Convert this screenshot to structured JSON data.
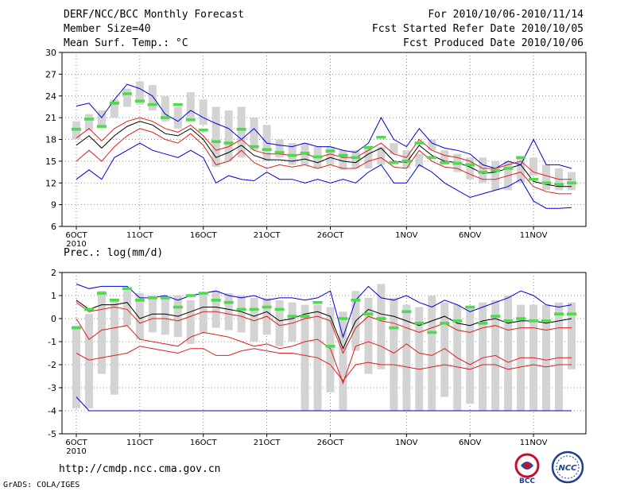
{
  "header": {
    "title": "DERF/NCC/BCC Monthly Forecast",
    "member_size": "Member Size=40",
    "variable": "Mean Surf. Temp.: °C",
    "forecast_period": "For 2010/10/06-2010/11/14",
    "refer_date": "Fcst Started Refer Date 2010/10/05",
    "produced_date": "Fcst Produced Date 2010/10/06"
  },
  "footer": {
    "url": "http://cmdp.ncc.cma.gov.cn",
    "credit": "GrADS: COLA/IGES",
    "logo_left": "BCC",
    "logo_right": "NCC"
  },
  "colors": {
    "box": "#d3d3d3",
    "median": "#4ddb4d",
    "mean": "#000000",
    "clim": "#e01e1e",
    "envelope": "#0000d8",
    "grid": "#666666"
  },
  "chart_data": [
    {
      "type": "box-ensemble",
      "title": "Mean Surf. Temp.: °C",
      "ylim": [
        6,
        30
      ],
      "yticks": [
        6,
        9,
        12,
        15,
        18,
        21,
        24,
        27,
        30
      ],
      "xlabels": [
        {
          "day": 1,
          "text": "6OCT"
        },
        {
          "day": 6,
          "text": "11OCT"
        },
        {
          "day": 11,
          "text": "16OCT"
        },
        {
          "day": 16,
          "text": "21OCT"
        },
        {
          "day": 21,
          "text": "26OCT"
        },
        {
          "day": 27,
          "text": "1NOV"
        },
        {
          "day": 32,
          "text": "6NOV"
        },
        {
          "day": 37,
          "text": "11NOV"
        }
      ],
      "year_label": "2010",
      "days": [
        1,
        2,
        3,
        4,
        5,
        6,
        7,
        8,
        9,
        10,
        11,
        12,
        13,
        14,
        15,
        16,
        17,
        18,
        19,
        20,
        21,
        22,
        23,
        24,
        25,
        26,
        27,
        28,
        29,
        30,
        31,
        32,
        33,
        34,
        35,
        36,
        37,
        38,
        39,
        40
      ],
      "box_low": [
        18.0,
        19.2,
        20.0,
        21.0,
        22.5,
        22.8,
        22.0,
        20.5,
        19.5,
        20.8,
        20.0,
        14.2,
        15.0,
        15.5,
        16.5,
        15.0,
        15.5,
        14.5,
        14.5,
        14.0,
        14.5,
        13.8,
        14.0,
        14.0,
        14.5,
        16.0,
        14.0,
        14.2,
        16.5,
        14.5,
        13.5,
        12.5,
        12.0,
        11.0,
        11.0,
        12.0,
        13.0,
        11.0,
        11.0,
        11.0
      ],
      "box_high": [
        20.5,
        21.5,
        22.0,
        23.5,
        25.0,
        26.0,
        25.5,
        24.0,
        22.5,
        24.5,
        23.5,
        22.5,
        22.0,
        22.5,
        21.0,
        20.0,
        18.0,
        17.5,
        17.5,
        17.0,
        17.0,
        16.5,
        16.5,
        17.0,
        17.0,
        17.5,
        16.5,
        16.0,
        18.0,
        16.5,
        16.0,
        15.5,
        15.5,
        15.0,
        15.0,
        15.5,
        15.5,
        14.5,
        14.0,
        13.5
      ],
      "median": [
        19.4,
        20.8,
        19.8,
        23.0,
        24.3,
        23.3,
        22.8,
        21.0,
        22.8,
        20.7,
        19.3,
        17.7,
        17.5,
        19.4,
        17.0,
        16.6,
        16.2,
        15.8,
        16.1,
        15.6,
        16.4,
        15.8,
        15.5,
        16.9,
        18.3,
        14.8,
        15.0,
        17.5,
        15.5,
        14.8,
        14.7,
        14.5,
        13.5,
        13.7,
        14.0,
        15.5,
        12.5,
        12.0,
        11.8,
        12.0
      ],
      "series": [
        {
          "name": "max",
          "color": "#0000d8",
          "values": [
            22.6,
            23.0,
            21.0,
            23.5,
            25.6,
            25.0,
            24.0,
            21.5,
            20.5,
            22.0,
            21.0,
            20.2,
            19.5,
            18.0,
            19.5,
            17.5,
            17.2,
            17.0,
            17.5,
            17.0,
            17.0,
            16.5,
            16.2,
            17.5,
            21.0,
            18.0,
            17.0,
            19.5,
            17.5,
            16.8,
            16.5,
            16.0,
            14.5,
            14.0,
            15.0,
            14.5,
            18.0,
            14.5,
            14.5,
            14.0
          ]
        },
        {
          "name": "upper",
          "color": "#e01e1e",
          "values": [
            18.2,
            19.5,
            17.8,
            19.5,
            20.5,
            21.0,
            20.5,
            19.5,
            19.0,
            20.0,
            18.5,
            16.5,
            17.0,
            18.0,
            16.5,
            16.0,
            16.0,
            15.8,
            16.0,
            15.5,
            16.0,
            15.5,
            15.5,
            16.5,
            17.5,
            16.0,
            15.5,
            18.0,
            16.5,
            15.8,
            15.5,
            15.0,
            14.0,
            14.0,
            14.5,
            15.0,
            13.5,
            13.0,
            12.5,
            12.5
          ]
        },
        {
          "name": "mean",
          "color": "#000000",
          "values": [
            17.2,
            18.5,
            16.8,
            18.5,
            19.8,
            20.5,
            20.0,
            18.8,
            18.5,
            19.5,
            18.0,
            15.5,
            16.2,
            17.2,
            15.8,
            15.2,
            15.2,
            15.0,
            15.3,
            14.8,
            15.5,
            15.0,
            14.8,
            16.0,
            16.8,
            15.0,
            14.8,
            17.2,
            15.8,
            15.0,
            14.8,
            14.2,
            13.3,
            13.5,
            14.0,
            14.5,
            12.2,
            11.8,
            11.5,
            11.5
          ]
        },
        {
          "name": "lower",
          "color": "#e01e1e",
          "values": [
            15.0,
            16.5,
            15.0,
            17.0,
            18.5,
            19.5,
            19.0,
            18.0,
            17.5,
            18.8,
            17.2,
            14.5,
            15.0,
            16.5,
            14.8,
            14.0,
            14.5,
            14.2,
            14.5,
            14.0,
            14.5,
            14.0,
            14.0,
            15.0,
            15.5,
            14.2,
            14.0,
            16.5,
            15.0,
            14.2,
            14.0,
            13.2,
            12.5,
            12.5,
            13.0,
            13.5,
            11.5,
            10.8,
            10.5,
            10.5
          ]
        },
        {
          "name": "min",
          "color": "#0000d8",
          "values": [
            12.5,
            13.8,
            12.5,
            15.5,
            16.5,
            17.5,
            16.5,
            16.0,
            15.5,
            16.5,
            15.5,
            12.0,
            13.0,
            12.5,
            12.3,
            13.5,
            12.5,
            12.5,
            12.0,
            12.5,
            12.0,
            12.5,
            12.0,
            13.5,
            14.5,
            12.0,
            12.0,
            14.5,
            13.5,
            12.0,
            11.0,
            10.0,
            10.5,
            11.0,
            11.5,
            12.5,
            9.5,
            8.5,
            8.5,
            8.6
          ]
        }
      ]
    },
    {
      "type": "box-ensemble",
      "title": "Prec.: log(mm/d)",
      "ylim": [
        -5,
        2
      ],
      "yticks": [
        -5,
        -4,
        -3,
        -2,
        -1,
        0,
        1,
        2
      ],
      "xlabels": [
        {
          "day": 1,
          "text": "6OCT"
        },
        {
          "day": 6,
          "text": "11OCT"
        },
        {
          "day": 11,
          "text": "16OCT"
        },
        {
          "day": 16,
          "text": "21OCT"
        },
        {
          "day": 21,
          "text": "26OCT"
        },
        {
          "day": 27,
          "text": "1NOV"
        },
        {
          "day": 32,
          "text": "6NOV"
        },
        {
          "day": 37,
          "text": "11NOV"
        }
      ],
      "year_label": "2010",
      "days": [
        1,
        2,
        3,
        4,
        5,
        6,
        7,
        8,
        9,
        10,
        11,
        12,
        13,
        14,
        15,
        16,
        17,
        18,
        19,
        20,
        21,
        22,
        23,
        24,
        25,
        26,
        27,
        28,
        29,
        30,
        31,
        32,
        33,
        34,
        35,
        36,
        37,
        38,
        39,
        40
      ],
      "box_low": [
        -3.9,
        -3.9,
        -2.4,
        -3.3,
        -0.3,
        -0.9,
        -0.6,
        -0.7,
        -0.8,
        -1.1,
        -0.6,
        -0.4,
        -0.5,
        -0.6,
        -1.0,
        -0.7,
        -1.2,
        -1.0,
        -4.0,
        -4.0,
        -3.2,
        -4.0,
        -1.4,
        -2.4,
        -2.2,
        -4.0,
        -4.0,
        -4.0,
        -4.0,
        -3.4,
        -4.0,
        -3.7,
        -4.0,
        -4.0,
        -4.0,
        -4.0,
        -4.0,
        -4.0,
        -4.0,
        -2.2
      ],
      "box_high": [
        -0.3,
        0.2,
        1.2,
        0.8,
        1.2,
        1.1,
        1.0,
        1.0,
        1.0,
        0.8,
        1.1,
        1.2,
        1.1,
        1.0,
        0.9,
        0.9,
        0.8,
        0.7,
        0.6,
        0.6,
        0.5,
        0.3,
        1.2,
        0.9,
        1.5,
        0.9,
        0.6,
        0.5,
        1.0,
        0.7,
        0.6,
        0.5,
        0.7,
        0.8,
        1.0,
        0.6,
        0.6,
        0.6,
        0.7,
        0.7
      ],
      "median": [
        -0.4,
        0.4,
        1.1,
        0.8,
        1.3,
        0.8,
        0.9,
        0.9,
        0.5,
        1.0,
        1.1,
        0.8,
        0.7,
        0.4,
        0.4,
        0.5,
        0.4,
        0.1,
        0.1,
        0.7,
        -1.2,
        0.0,
        0.8,
        0.2,
        0.0,
        -0.4,
        0.3,
        -0.2,
        -0.6,
        -0.2,
        -0.1,
        0.5,
        -0.2,
        0.1,
        -0.1,
        0.0,
        -0.1,
        -0.1,
        0.2,
        0.2
      ],
      "series": [
        {
          "name": "max",
          "color": "#0000d8",
          "values": [
            1.5,
            1.3,
            1.4,
            1.4,
            1.4,
            0.9,
            0.9,
            1.0,
            0.8,
            1.0,
            1.1,
            1.2,
            1.0,
            0.9,
            1.0,
            0.8,
            0.9,
            0.9,
            0.8,
            0.9,
            1.2,
            -0.8,
            0.8,
            1.4,
            0.9,
            0.8,
            1.0,
            0.7,
            0.5,
            0.8,
            0.6,
            0.3,
            0.5,
            0.7,
            0.9,
            1.2,
            1.0,
            0.6,
            0.5,
            0.6
          ]
        },
        {
          "name": "mean",
          "color": "#000000",
          "values": [
            0.8,
            0.4,
            0.6,
            0.6,
            0.7,
            0.0,
            0.2,
            0.2,
            0.1,
            0.3,
            0.5,
            0.5,
            0.4,
            0.3,
            0.1,
            0.3,
            -0.1,
            0.0,
            0.2,
            0.3,
            0.1,
            -1.3,
            -0.1,
            0.4,
            0.2,
            0.1,
            -0.1,
            -0.3,
            -0.1,
            0.1,
            -0.2,
            -0.3,
            -0.1,
            0.0,
            -0.2,
            -0.1,
            -0.1,
            -0.2,
            -0.1,
            0.0
          ]
        },
        {
          "name": "upper",
          "color": "#e01e1e",
          "values": [
            0.7,
            0.3,
            0.4,
            0.5,
            0.4,
            -0.2,
            0.0,
            0.0,
            -0.1,
            0.1,
            0.3,
            0.3,
            0.2,
            0.1,
            -0.1,
            0.1,
            -0.3,
            -0.2,
            0.0,
            0.1,
            -0.1,
            -1.5,
            -0.4,
            0.1,
            -0.1,
            -0.2,
            -0.4,
            -0.6,
            -0.4,
            -0.2,
            -0.5,
            -0.6,
            -0.4,
            -0.3,
            -0.5,
            -0.4,
            -0.4,
            -0.5,
            -0.4,
            -0.4
          ]
        },
        {
          "name": "lower",
          "color": "#e01e1e",
          "values": [
            0.0,
            -0.9,
            -0.5,
            -0.4,
            -0.3,
            -0.9,
            -1.0,
            -1.1,
            -1.2,
            -0.8,
            -0.6,
            -0.7,
            -0.8,
            -1.0,
            -1.2,
            -1.1,
            -1.3,
            -1.2,
            -1.0,
            -0.9,
            -1.3,
            -2.8,
            -1.2,
            -1.0,
            -1.2,
            -1.5,
            -1.1,
            -1.5,
            -1.6,
            -1.3,
            -1.7,
            -2.0,
            -1.7,
            -1.6,
            -1.9,
            -1.7,
            -1.7,
            -1.8,
            -1.7,
            -1.7
          ]
        },
        {
          "name": "low",
          "color": "#e01e1e",
          "values": [
            -1.5,
            -1.8,
            -1.7,
            -1.6,
            -1.5,
            -1.2,
            -1.3,
            -1.4,
            -1.5,
            -1.3,
            -1.3,
            -1.6,
            -1.6,
            -1.4,
            -1.3,
            -1.4,
            -1.5,
            -1.5,
            -1.6,
            -1.7,
            -2.0,
            -2.7,
            -2.0,
            -1.9,
            -2.0,
            -2.0,
            -2.1,
            -2.2,
            -2.1,
            -2.0,
            -2.1,
            -2.2,
            -2.0,
            -2.0,
            -2.2,
            -2.1,
            -2.0,
            -2.1,
            -2.0,
            -2.0
          ]
        },
        {
          "name": "min",
          "color": "#0000d8",
          "values": [
            -3.4,
            -4.0,
            -4.0,
            -4.0,
            -4.0,
            -4.0,
            -4.0,
            -4.0,
            -4.0,
            -4.0,
            -4.0,
            -4.0,
            -4.0,
            -4.0,
            -4.0,
            -4.0,
            -4.0,
            -4.0,
            -4.0,
            -4.0,
            -4.0,
            -4.0,
            -4.0,
            -4.0,
            -4.0,
            -4.0,
            -4.0,
            -4.0,
            -4.0,
            -4.0,
            -4.0,
            -4.0,
            -4.0,
            -4.0,
            -4.0,
            -4.0,
            -4.0,
            -4.0,
            -4.0,
            -4.0
          ]
        }
      ]
    }
  ]
}
